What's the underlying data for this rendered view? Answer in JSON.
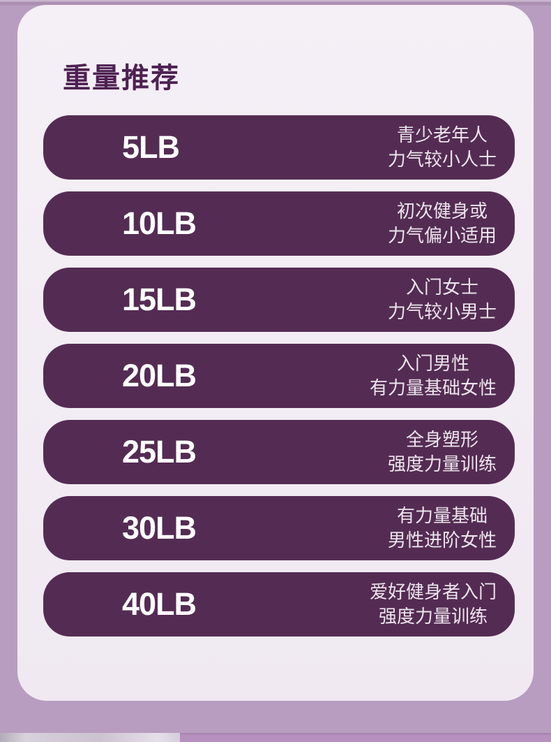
{
  "section": {
    "title": "重量推荐"
  },
  "colors": {
    "outer_background": "#b89dc0",
    "card_background": "#f2ecf4",
    "pill_background": "#542c53",
    "title_color": "#4e2152",
    "weight_text_color": "#ffffff",
    "desc_text_color": "#ece5ed"
  },
  "rows": [
    {
      "weight": "5LB",
      "desc_line1": "青少老年人",
      "desc_line2": "力气较小人士"
    },
    {
      "weight": "10LB",
      "desc_line1": "初次健身或",
      "desc_line2": "力气偏小适用"
    },
    {
      "weight": "15LB",
      "desc_line1": "入门女士",
      "desc_line2": "力气较小男士"
    },
    {
      "weight": "20LB",
      "desc_line1": "入门男性",
      "desc_line2": "有力量基础女性"
    },
    {
      "weight": "25LB",
      "desc_line1": "全身塑形",
      "desc_line2": "强度力量训练"
    },
    {
      "weight": "30LB",
      "desc_line1": "有力量基础",
      "desc_line2": "男性进阶女性"
    },
    {
      "weight": "40LB",
      "desc_line1": "爱好健身者入门",
      "desc_line2": "强度力量训练"
    }
  ]
}
